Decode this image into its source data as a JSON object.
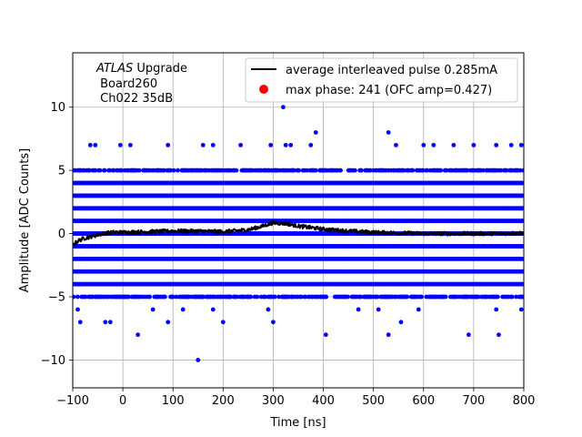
{
  "chart_data": {
    "type": "scatter",
    "xlabel": "Time [ns]",
    "ylabel": "Amplitude [ADC Counts]",
    "xlim": [
      -100,
      800
    ],
    "ylim": [
      -12.2,
      14.3
    ],
    "xticks": [
      -100,
      0,
      100,
      200,
      300,
      400,
      500,
      600,
      700,
      800
    ],
    "yticks": [
      -10,
      -5,
      0,
      5,
      10
    ],
    "grid": true,
    "legend_position": "upper right",
    "annotation": {
      "italic": "ATLAS",
      "rest": " Upgrade",
      "line2": " Board260",
      "line3": " Ch022 35dB"
    },
    "series": [
      {
        "name": "average interleaved pulse 0.285mA",
        "kind": "line",
        "color": "#000000",
        "x_range": [
          -100,
          800
        ],
        "profile": [
          [
            -100,
            -0.9
          ],
          [
            -90,
            -0.6
          ],
          [
            -80,
            -0.4
          ],
          [
            -60,
            -0.2
          ],
          [
            -40,
            0.0
          ],
          [
            -20,
            0.1
          ],
          [
            0,
            0.1
          ],
          [
            50,
            0.15
          ],
          [
            100,
            0.2
          ],
          [
            150,
            0.2
          ],
          [
            200,
            0.15
          ],
          [
            250,
            0.3
          ],
          [
            275,
            0.55
          ],
          [
            300,
            0.85
          ],
          [
            325,
            0.8
          ],
          [
            350,
            0.6
          ],
          [
            400,
            0.35
          ],
          [
            450,
            0.2
          ],
          [
            500,
            0.1
          ],
          [
            550,
            0.05
          ],
          [
            600,
            0.0
          ],
          [
            650,
            0.0
          ],
          [
            700,
            0.0
          ],
          [
            750,
            0.0
          ],
          [
            800,
            0.05
          ]
        ],
        "noise": 0.15
      },
      {
        "name": "samples",
        "kind": "points",
        "color": "#0000ff",
        "levels": [
          -4,
          -3,
          -2,
          -1,
          0,
          1,
          2,
          3,
          4
        ],
        "sparse_levels": [
          -5,
          5
        ],
        "outliers": [
          [
            -85,
            5.0
          ],
          [
            -65,
            7.0
          ],
          [
            -55,
            7.0
          ],
          [
            -5,
            7.0
          ],
          [
            15,
            7.0
          ],
          [
            90,
            7.0
          ],
          [
            160,
            7.0
          ],
          [
            180,
            7.0
          ],
          [
            235,
            7.0
          ],
          [
            295,
            7.0
          ],
          [
            325,
            7.0
          ],
          [
            335,
            7.0
          ],
          [
            375,
            7.0
          ],
          [
            385,
            8.0
          ],
          [
            530,
            8.0
          ],
          [
            545,
            7.0
          ],
          [
            600,
            7.0
          ],
          [
            620,
            7.0
          ],
          [
            660,
            7.0
          ],
          [
            700,
            7.0
          ],
          [
            745,
            7.0
          ],
          [
            775,
            7.0
          ],
          [
            795,
            7.0
          ],
          [
            320,
            10.0
          ],
          [
            -90,
            -6.0
          ],
          [
            -85,
            -7.0
          ],
          [
            -35,
            -7.0
          ],
          [
            -25,
            -7.0
          ],
          [
            30,
            -8.0
          ],
          [
            60,
            -6.0
          ],
          [
            90,
            -7.0
          ],
          [
            120,
            -6.0
          ],
          [
            150,
            -10.0
          ],
          [
            180,
            -6.0
          ],
          [
            200,
            -7.0
          ],
          [
            290,
            -6.0
          ],
          [
            300,
            -7.0
          ],
          [
            405,
            -8.0
          ],
          [
            470,
            -6.0
          ],
          [
            510,
            -6.0
          ],
          [
            530,
            -8.0
          ],
          [
            555,
            -7.0
          ],
          [
            590,
            -6.0
          ],
          [
            690,
            -8.0
          ],
          [
            745,
            -6.0
          ],
          [
            750,
            -8.0
          ],
          [
            795,
            -6.0
          ]
        ]
      },
      {
        "name": "max phase: 241 (OFC amp=0.427)",
        "kind": "marker",
        "color": "#ff0000",
        "points": []
      }
    ]
  }
}
